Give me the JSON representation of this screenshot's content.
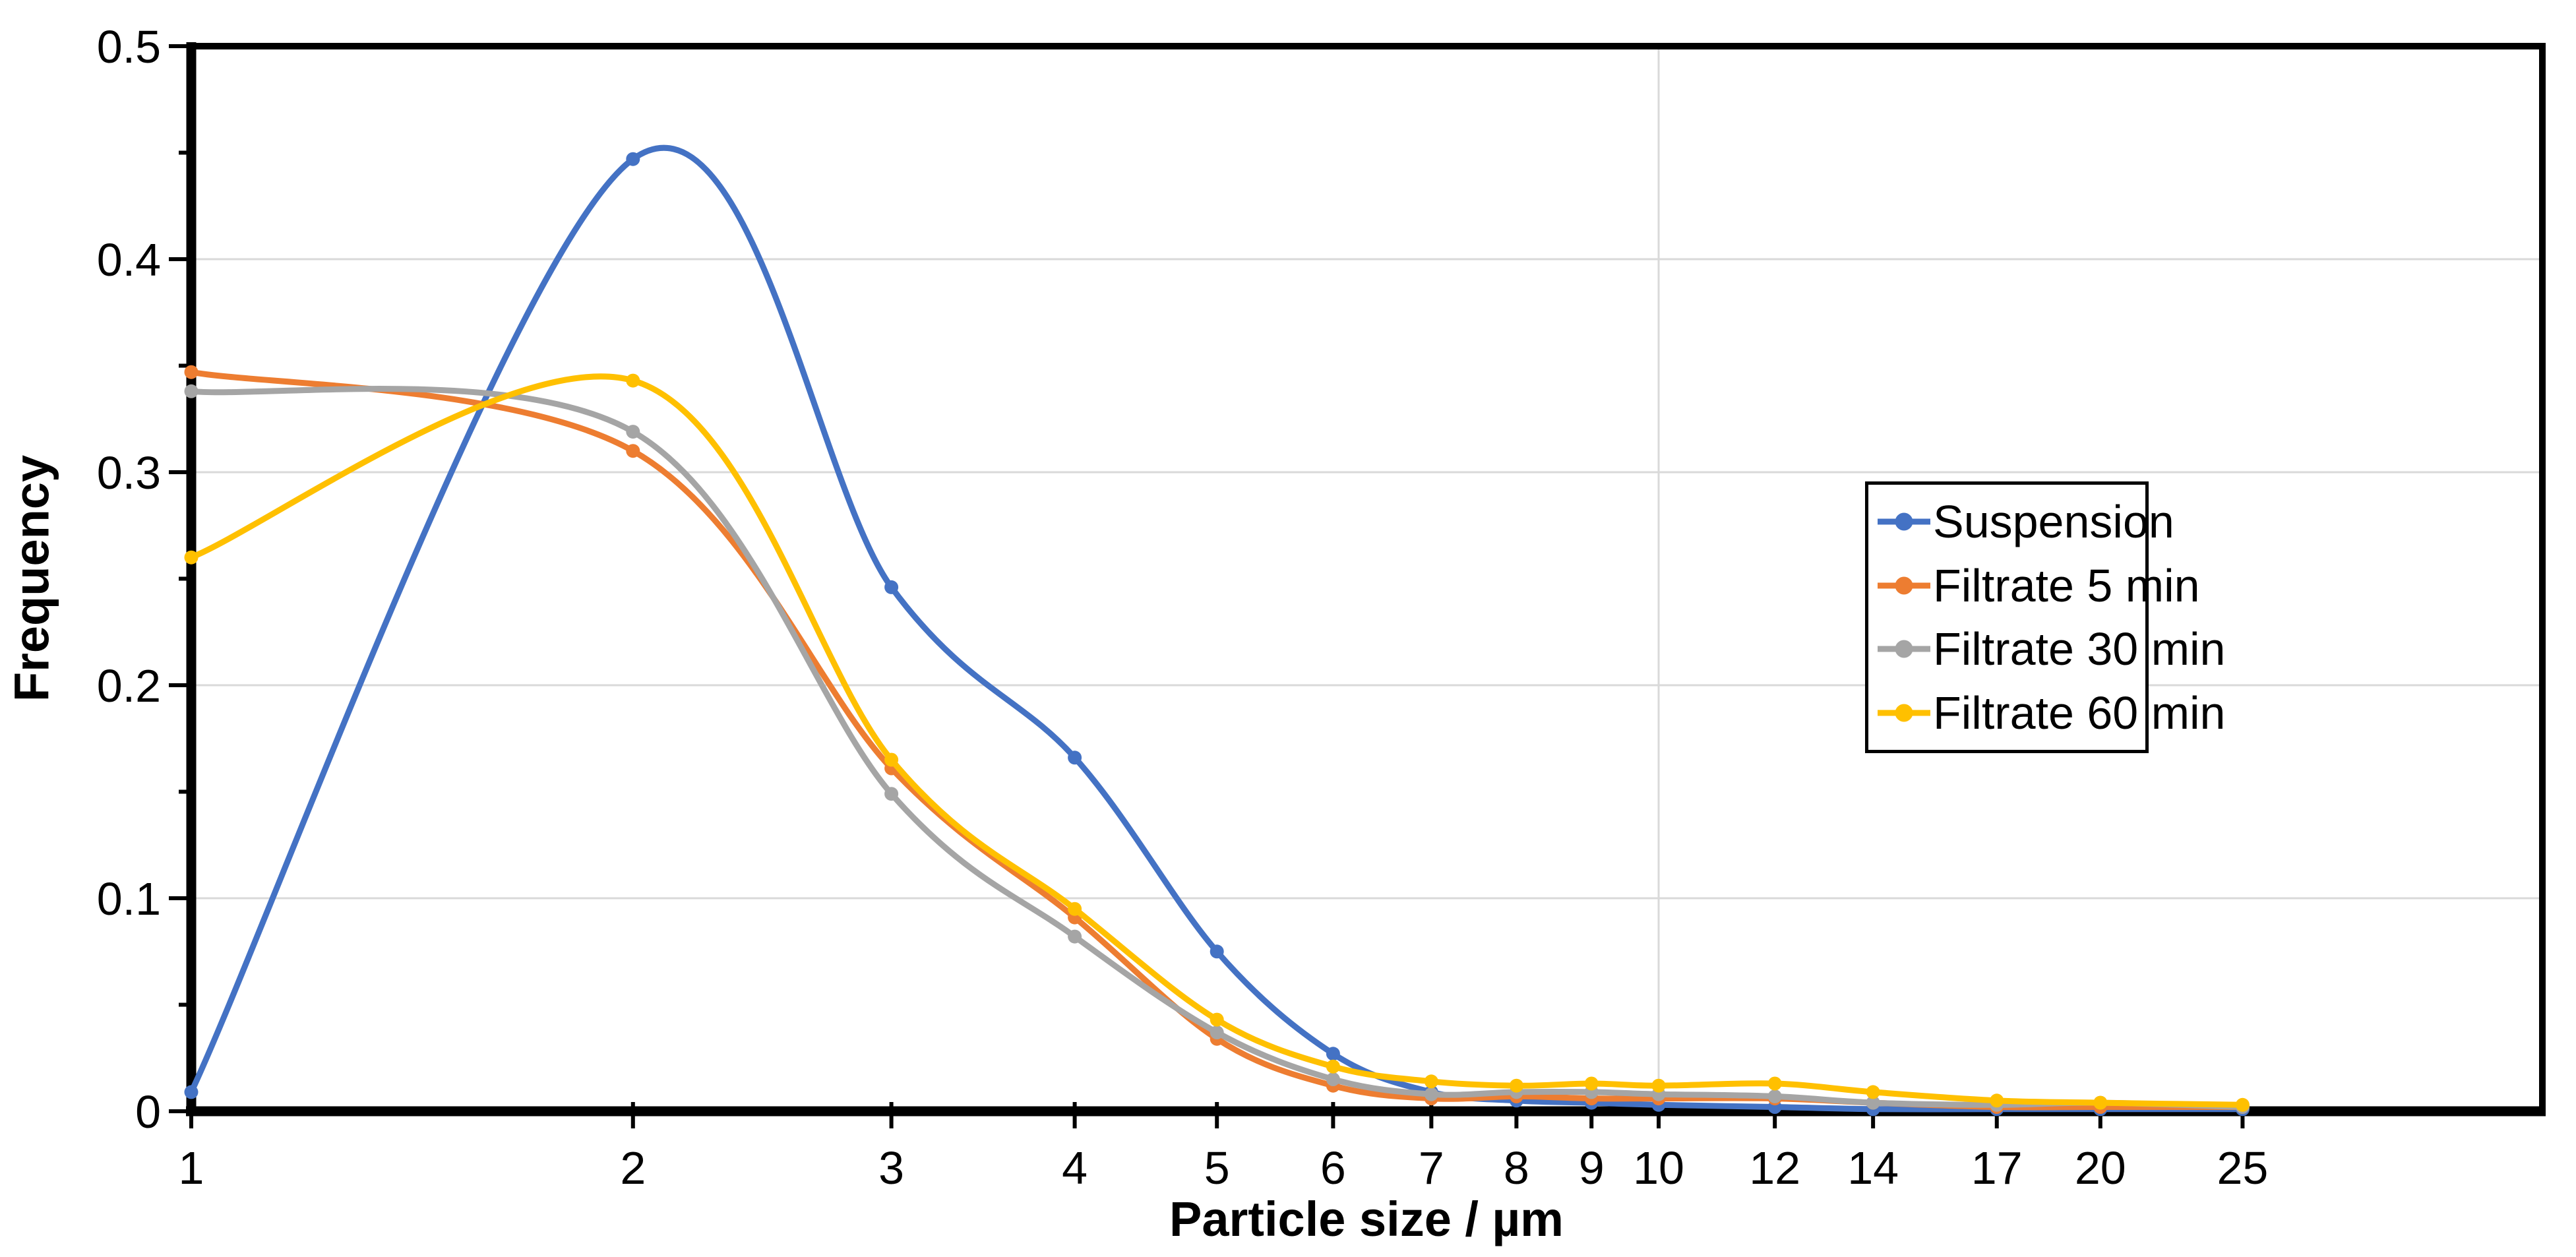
{
  "chart_data": {
    "type": "line",
    "title": "",
    "xlabel": "Particle size / µm",
    "ylabel": "Frequency",
    "x_scale": "log",
    "x_range": [
      1,
      40
    ],
    "y_range": [
      0,
      0.5
    ],
    "x_ticks": [
      1,
      2,
      3,
      4,
      5,
      6,
      7,
      8,
      9,
      10,
      12,
      14,
      17,
      20,
      25
    ],
    "x_tick_labels": [
      "1",
      "2",
      "3",
      "4",
      "5",
      "6",
      "7",
      "8",
      "9",
      "10",
      "12",
      "14",
      "17",
      "20",
      "25"
    ],
    "y_ticks": [
      0,
      0.1,
      0.2,
      0.3,
      0.4,
      0.5
    ],
    "y_tick_labels": [
      "0",
      "0.1",
      "0.2",
      "0.3",
      "0.4",
      "0.5"
    ],
    "y_minor_ticks": [
      0.05,
      0.15,
      0.25,
      0.35,
      0.45
    ],
    "h_gridlines": [
      0.1,
      0.2,
      0.3,
      0.4
    ],
    "v_gridlines": [
      10
    ],
    "grid_on": true,
    "grid_color": "#d9d9d9",
    "axis_color": "#000000",
    "background_color": "#ffffff",
    "legend_position": "middle-right",
    "marker": "circle",
    "smooth": true,
    "categories": [
      1,
      2,
      3,
      4,
      5,
      6,
      7,
      8,
      9,
      10,
      12,
      14,
      17,
      20,
      25
    ],
    "series": [
      {
        "name": "Suspension",
        "color": "#4472c4",
        "values": [
          0.009,
          0.447,
          0.246,
          0.166,
          0.075,
          0.027,
          0.009,
          0.005,
          0.004,
          0.003,
          0.002,
          0.001,
          0.001,
          0.001,
          0.001
        ]
      },
      {
        "name": "Filtrate 5 min",
        "color": "#ed7d31",
        "values": [
          0.347,
          0.31,
          0.161,
          0.091,
          0.034,
          0.012,
          0.006,
          0.007,
          0.006,
          0.006,
          0.006,
          0.004,
          0.002,
          0.002,
          0.002
        ]
      },
      {
        "name": "Filtrate 30 min",
        "color": "#a5a5a5",
        "values": [
          0.338,
          0.319,
          0.149,
          0.082,
          0.037,
          0.015,
          0.008,
          0.009,
          0.009,
          0.008,
          0.007,
          0.004,
          0.003,
          0.004,
          0.002
        ]
      },
      {
        "name": "Filtrate 60 min",
        "color": "#ffc000",
        "values": [
          0.26,
          0.343,
          0.165,
          0.095,
          0.043,
          0.021,
          0.014,
          0.012,
          0.013,
          0.012,
          0.013,
          0.009,
          0.005,
          0.004,
          0.003
        ]
      }
    ]
  }
}
